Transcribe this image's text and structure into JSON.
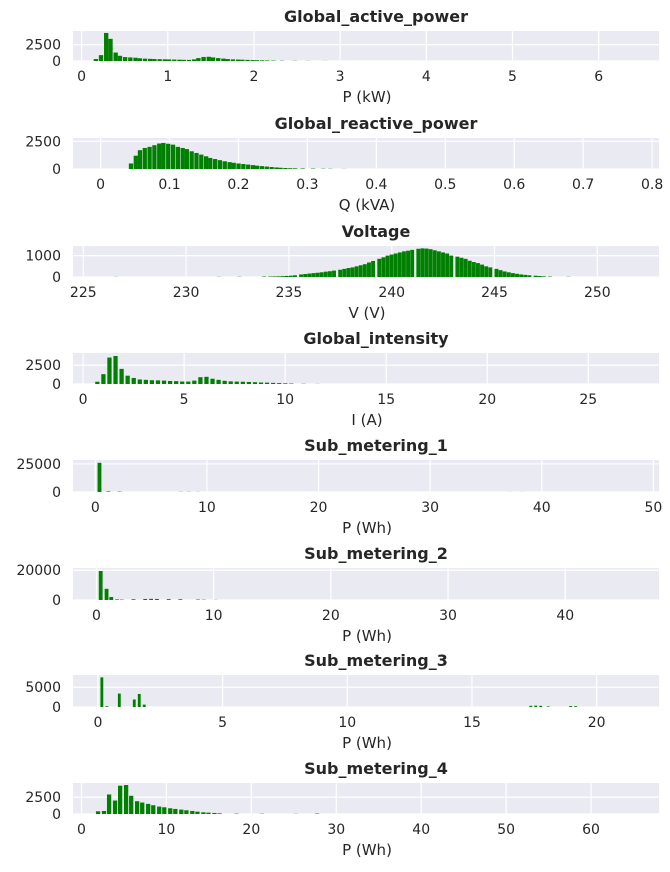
{
  "colors": {
    "bar": "#008000",
    "axes_bg": "#eaeaf2",
    "grid": "#ffffff",
    "text": "#262626"
  },
  "chart_data": [
    {
      "type": "bar",
      "title": "Global_active_power",
      "xlabel": "P (kW)",
      "xlim": [
        -0.1,
        6.7
      ],
      "ylim": [
        0,
        4600
      ],
      "xticks": [
        0,
        1,
        2,
        3,
        4,
        5,
        6
      ],
      "yticks": [
        0,
        2500
      ],
      "bin_width": 0.055,
      "grid": true,
      "bins": [
        [
          0.14,
          300
        ],
        [
          0.2,
          900
        ],
        [
          0.26,
          4300
        ],
        [
          0.31,
          3400
        ],
        [
          0.37,
          1300
        ],
        [
          0.42,
          800
        ],
        [
          0.48,
          600
        ],
        [
          0.54,
          550
        ],
        [
          0.6,
          500
        ],
        [
          0.65,
          420
        ],
        [
          0.71,
          360
        ],
        [
          0.77,
          330
        ],
        [
          0.82,
          300
        ],
        [
          0.88,
          280
        ],
        [
          0.94,
          260
        ],
        [
          0.99,
          240
        ],
        [
          1.05,
          220
        ],
        [
          1.11,
          200
        ],
        [
          1.16,
          180
        ],
        [
          1.22,
          170
        ],
        [
          1.28,
          250
        ],
        [
          1.33,
          450
        ],
        [
          1.39,
          620
        ],
        [
          1.45,
          650
        ],
        [
          1.5,
          550
        ],
        [
          1.56,
          450
        ],
        [
          1.62,
          370
        ],
        [
          1.67,
          300
        ],
        [
          1.73,
          250
        ],
        [
          1.79,
          220
        ],
        [
          1.84,
          200
        ],
        [
          1.9,
          170
        ],
        [
          1.96,
          140
        ],
        [
          2.01,
          120
        ],
        [
          2.07,
          100
        ],
        [
          2.13,
          80
        ],
        [
          2.2,
          60
        ],
        [
          2.3,
          40
        ],
        [
          2.45,
          30
        ],
        [
          2.6,
          20
        ],
        [
          2.8,
          15
        ]
      ]
    },
    {
      "type": "bar",
      "title": "Global_reactive_power",
      "xlabel": "Q (kVA)",
      "xlim": [
        -0.04,
        0.81
      ],
      "ylim": [
        0,
        2800
      ],
      "xticks": [
        0.0,
        0.1,
        0.2,
        0.3,
        0.4,
        0.5,
        0.6,
        0.7,
        0.8
      ],
      "yticks": [
        0,
        2500
      ],
      "bin_width": 0.0068,
      "grid": true,
      "bins": [
        [
          0.041,
          500
        ],
        [
          0.048,
          1200
        ],
        [
          0.054,
          1700
        ],
        [
          0.061,
          1900
        ],
        [
          0.068,
          2000
        ],
        [
          0.075,
          2150
        ],
        [
          0.082,
          2300
        ],
        [
          0.088,
          2350
        ],
        [
          0.095,
          2280
        ],
        [
          0.102,
          2200
        ],
        [
          0.109,
          2000
        ],
        [
          0.116,
          1900
        ],
        [
          0.122,
          1800
        ],
        [
          0.129,
          1600
        ],
        [
          0.136,
          1450
        ],
        [
          0.143,
          1300
        ],
        [
          0.15,
          1150
        ],
        [
          0.156,
          1000
        ],
        [
          0.163,
          900
        ],
        [
          0.17,
          800
        ],
        [
          0.177,
          700
        ],
        [
          0.184,
          620
        ],
        [
          0.19,
          560
        ],
        [
          0.197,
          500
        ],
        [
          0.204,
          450
        ],
        [
          0.211,
          400
        ],
        [
          0.218,
          350
        ],
        [
          0.224,
          300
        ],
        [
          0.231,
          260
        ],
        [
          0.238,
          220
        ],
        [
          0.245,
          180
        ],
        [
          0.252,
          140
        ],
        [
          0.258,
          110
        ],
        [
          0.265,
          90
        ],
        [
          0.272,
          70
        ],
        [
          0.279,
          60
        ],
        [
          0.29,
          45
        ],
        [
          0.305,
          35
        ],
        [
          0.32,
          25
        ],
        [
          0.33,
          20
        ],
        [
          0.35,
          10
        ]
      ]
    },
    {
      "type": "bar",
      "title": "Voltage",
      "xlabel": "V (V)",
      "xlim": [
        224.5,
        253
      ],
      "ylim": [
        0,
        1450
      ],
      "xticks": [
        225,
        230,
        235,
        240,
        245,
        250
      ],
      "yticks": [
        0,
        1000
      ],
      "bin_width": 0.21,
      "grid": true,
      "bins": [
        [
          226.5,
          6
        ],
        [
          231.5,
          8
        ],
        [
          232.5,
          10
        ],
        [
          233.7,
          20
        ],
        [
          234.0,
          22
        ],
        [
          234.2,
          25
        ],
        [
          234.4,
          30
        ],
        [
          234.6,
          40
        ],
        [
          234.8,
          50
        ],
        [
          235.0,
          60
        ],
        [
          235.2,
          80
        ],
        [
          235.5,
          120
        ],
        [
          235.7,
          140
        ],
        [
          235.9,
          160
        ],
        [
          236.1,
          180
        ],
        [
          236.3,
          200
        ],
        [
          236.5,
          220
        ],
        [
          236.7,
          250
        ],
        [
          236.9,
          270
        ],
        [
          237.1,
          300
        ],
        [
          237.4,
          340
        ],
        [
          237.6,
          380
        ],
        [
          237.8,
          420
        ],
        [
          238.0,
          450
        ],
        [
          238.2,
          500
        ],
        [
          238.4,
          550
        ],
        [
          238.6,
          600
        ],
        [
          238.8,
          680
        ],
        [
          239.0,
          750
        ],
        [
          239.3,
          850
        ],
        [
          239.5,
          920
        ],
        [
          239.7,
          1000
        ],
        [
          239.9,
          1050
        ],
        [
          240.1,
          1100
        ],
        [
          240.3,
          1150
        ],
        [
          240.5,
          1200
        ],
        [
          240.7,
          1230
        ],
        [
          240.9,
          1270
        ],
        [
          241.2,
          1320
        ],
        [
          241.4,
          1340
        ],
        [
          241.6,
          1330
        ],
        [
          241.8,
          1300
        ],
        [
          242.0,
          1250
        ],
        [
          242.2,
          1200
        ],
        [
          242.4,
          1150
        ],
        [
          242.6,
          1100
        ],
        [
          242.8,
          1000
        ],
        [
          243.1,
          950
        ],
        [
          243.3,
          900
        ],
        [
          243.5,
          850
        ],
        [
          243.7,
          760
        ],
        [
          243.9,
          700
        ],
        [
          244.1,
          650
        ],
        [
          244.3,
          580
        ],
        [
          244.5,
          500
        ],
        [
          244.7,
          450
        ],
        [
          245.0,
          380
        ],
        [
          245.2,
          320
        ],
        [
          245.4,
          260
        ],
        [
          245.6,
          220
        ],
        [
          245.8,
          180
        ],
        [
          246.0,
          150
        ],
        [
          246.2,
          120
        ],
        [
          246.4,
          100
        ],
        [
          246.6,
          80
        ],
        [
          246.9,
          60
        ],
        [
          247.1,
          45
        ],
        [
          247.3,
          30
        ],
        [
          247.6,
          20
        ],
        [
          248.5,
          10
        ]
      ]
    },
    {
      "type": "bar",
      "title": "Global_intensity",
      "xlabel": "I (A)",
      "xlim": [
        -0.5,
        28.5
      ],
      "ylim": [
        0,
        4100
      ],
      "xticks": [
        0,
        5,
        10,
        15,
        20,
        25
      ],
      "yticks": [
        0,
        2500
      ],
      "bin_width": 0.23,
      "grid": true,
      "bins": [
        [
          0.6,
          300
        ],
        [
          0.9,
          1300
        ],
        [
          1.2,
          3500
        ],
        [
          1.5,
          3700
        ],
        [
          1.8,
          2000
        ],
        [
          2.1,
          1100
        ],
        [
          2.4,
          800
        ],
        [
          2.7,
          600
        ],
        [
          3.0,
          550
        ],
        [
          3.3,
          500
        ],
        [
          3.6,
          480
        ],
        [
          3.9,
          450
        ],
        [
          4.2,
          400
        ],
        [
          4.5,
          380
        ],
        [
          4.8,
          330
        ],
        [
          5.1,
          320
        ],
        [
          5.4,
          450
        ],
        [
          5.7,
          900
        ],
        [
          6.0,
          950
        ],
        [
          6.3,
          700
        ],
        [
          6.6,
          550
        ],
        [
          6.9,
          420
        ],
        [
          7.2,
          350
        ],
        [
          7.5,
          320
        ],
        [
          7.8,
          300
        ],
        [
          8.1,
          270
        ],
        [
          8.4,
          240
        ],
        [
          8.7,
          200
        ],
        [
          9.0,
          180
        ],
        [
          9.3,
          150
        ],
        [
          9.6,
          120
        ],
        [
          9.9,
          90
        ],
        [
          10.2,
          60
        ],
        [
          10.8,
          30
        ],
        [
          11.5,
          15
        ]
      ]
    },
    {
      "type": "bar",
      "title": "Sub_metering_1",
      "xlabel": "P (Wh)",
      "xlim": [
        -2,
        50.5
      ],
      "ylim": [
        0,
        28500
      ],
      "xticks": [
        0,
        10,
        20,
        30,
        40,
        50
      ],
      "yticks": [
        0,
        25000
      ],
      "bin_width": 0.38,
      "grid": true,
      "bins": [
        [
          0.2,
          26000
        ],
        [
          1.0,
          500
        ],
        [
          2.0,
          300
        ],
        [
          7.5,
          150
        ],
        [
          8.2,
          150
        ],
        [
          9.0,
          100
        ],
        [
          37.0,
          60
        ],
        [
          38.0,
          50
        ]
      ]
    },
    {
      "type": "bar",
      "title": "Sub_metering_2",
      "xlabel": "P (Wh)",
      "xlim": [
        -2,
        48
      ],
      "ylim": [
        0,
        21500
      ],
      "xticks": [
        0,
        10,
        20,
        30,
        40
      ],
      "yticks": [
        0,
        20000
      ],
      "bin_width": 0.36,
      "grid": true,
      "bins": [
        [
          0.2,
          19500
        ],
        [
          0.7,
          7500
        ],
        [
          1.1,
          2000
        ],
        [
          1.6,
          400
        ],
        [
          2.0,
          250
        ],
        [
          3.0,
          500
        ],
        [
          4.0,
          700
        ],
        [
          4.5,
          800
        ],
        [
          5.0,
          700
        ],
        [
          6.0,
          600
        ],
        [
          7.0,
          500
        ],
        [
          8.5,
          300
        ],
        [
          9.0,
          200
        ],
        [
          10.0,
          100
        ]
      ]
    },
    {
      "type": "bar",
      "title": "Sub_metering_3",
      "xlabel": "P (Wh)",
      "xlim": [
        -1,
        22.5
      ],
      "ylim": [
        0,
        8100
      ],
      "xticks": [
        0,
        5,
        10,
        15,
        20
      ],
      "yticks": [
        0,
        5000
      ],
      "bin_width": 0.13,
      "grid": true,
      "bins": [
        [
          0.1,
          7500
        ],
        [
          0.3,
          200
        ],
        [
          0.8,
          3400
        ],
        [
          1.4,
          1900
        ],
        [
          1.6,
          3300
        ],
        [
          1.8,
          600
        ],
        [
          17.3,
          300
        ],
        [
          17.5,
          350
        ],
        [
          17.7,
          300
        ],
        [
          18.0,
          150
        ],
        [
          18.9,
          250
        ],
        [
          19.1,
          200
        ]
      ]
    },
    {
      "type": "bar",
      "title": "Sub_metering_4",
      "xlabel": "P (Wh)",
      "xlim": [
        -1,
        68
      ],
      "ylim": [
        0,
        4600
      ],
      "xticks": [
        0,
        10,
        20,
        30,
        40,
        50,
        60
      ],
      "yticks": [
        0,
        2500
      ],
      "bin_width": 0.55,
      "grid": true,
      "bins": [
        [
          1.7,
          400
        ],
        [
          2.4,
          450
        ],
        [
          3.0,
          2900
        ],
        [
          3.7,
          2000
        ],
        [
          4.3,
          4200
        ],
        [
          5.0,
          4300
        ],
        [
          5.6,
          2700
        ],
        [
          6.3,
          1900
        ],
        [
          6.9,
          1700
        ],
        [
          7.6,
          1500
        ],
        [
          8.2,
          1300
        ],
        [
          8.9,
          1100
        ],
        [
          9.5,
          1000
        ],
        [
          10.2,
          850
        ],
        [
          10.8,
          750
        ],
        [
          11.5,
          650
        ],
        [
          12.1,
          550
        ],
        [
          12.8,
          450
        ],
        [
          13.4,
          350
        ],
        [
          14.1,
          250
        ],
        [
          14.7,
          200
        ],
        [
          15.4,
          150
        ],
        [
          16.0,
          100
        ],
        [
          18.0,
          50
        ],
        [
          21.0,
          40
        ],
        [
          25.0,
          25
        ],
        [
          27.5,
          60
        ]
      ]
    }
  ]
}
